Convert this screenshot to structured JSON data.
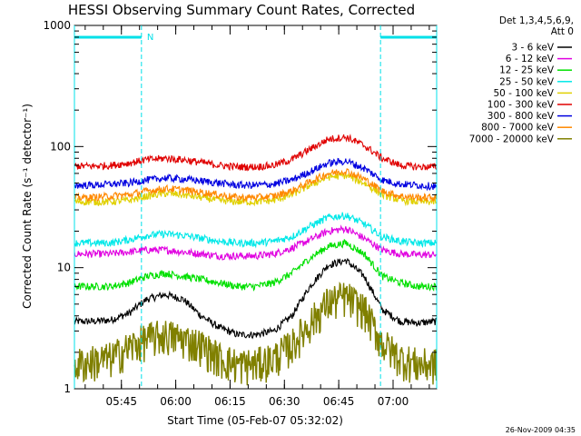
{
  "chart_data": {
    "type": "line",
    "title": "HESSI Observing Summary Count Rates, Corrected",
    "xlabel": "Start Time (05-Feb-07 05:32:02)",
    "ylabel": "Corrected Count Rate (s⁻¹ detector⁻¹)",
    "yscale": "log",
    "ylim": [
      1,
      1000
    ],
    "xlim_minutes_from_start": [
      0,
      100
    ],
    "x_ticks": [
      "05:45",
      "06:00",
      "06:15",
      "06:30",
      "06:45",
      "07:00"
    ],
    "y_ticks": [
      "1",
      "10",
      "100",
      "1000"
    ],
    "legend_header": [
      "Det 1,3,4,5,6,9,",
      "Att 0"
    ],
    "legend_position": "right",
    "timestamp": "26-Nov-2009 04:35",
    "flag_label": "N",
    "night_intervals_minutes": [
      [
        0,
        18.5
      ],
      [
        84.5,
        100
      ]
    ],
    "x_minutes": [
      0,
      5,
      10,
      15,
      20,
      25,
      30,
      35,
      40,
      45,
      50,
      55,
      60,
      65,
      70,
      75,
      80,
      85,
      90,
      95,
      100
    ],
    "series": [
      {
        "name": "3 - 6 keV",
        "color": "#000000",
        "values": [
          3.6,
          3.6,
          3.7,
          4.2,
          5.5,
          6.0,
          5.5,
          4.0,
          3.2,
          2.8,
          2.8,
          3.0,
          4.0,
          7.0,
          10.5,
          11.5,
          8.5,
          4.5,
          3.6,
          3.5,
          3.6
        ]
      },
      {
        "name": "6 - 12 keV",
        "color": "#e000e0",
        "values": [
          13,
          13,
          13,
          13.5,
          14,
          14,
          13.5,
          13,
          12.5,
          12.5,
          12.5,
          13,
          14.5,
          17,
          20,
          21,
          17.5,
          14,
          13,
          12.8,
          12.8
        ]
      },
      {
        "name": "12 - 25 keV",
        "color": "#00e000",
        "values": [
          7,
          7,
          7,
          7.5,
          8.5,
          9,
          8.5,
          8,
          7.5,
          7,
          7,
          7.5,
          9,
          12,
          15,
          16,
          13,
          8.5,
          7.5,
          7,
          7
        ]
      },
      {
        "name": "25 - 50 keV",
        "color": "#00e8e8",
        "values": [
          16,
          16,
          16,
          17,
          18.5,
          19,
          18.5,
          17.5,
          16.5,
          16,
          16,
          16.5,
          18,
          22,
          26,
          27,
          23,
          18,
          16.5,
          16,
          16
        ]
      },
      {
        "name": "50 - 100 keV",
        "color": "#e0d000",
        "values": [
          35,
          35,
          35,
          36,
          39,
          41,
          40,
          38,
          36,
          35,
          35,
          36,
          40,
          48,
          56,
          58,
          50,
          40,
          36,
          35,
          35
        ]
      },
      {
        "name": "100 - 300 keV",
        "color": "#e00000",
        "values": [
          69,
          69,
          70,
          73,
          78,
          80,
          78,
          74,
          70,
          68,
          68,
          70,
          78,
          95,
          115,
          120,
          102,
          80,
          70,
          68,
          68
        ]
      },
      {
        "name": "300 - 800 keV",
        "color": "#0000e0",
        "values": [
          48,
          48,
          49,
          50,
          53,
          55,
          54,
          52,
          50,
          48,
          48,
          49,
          53,
          62,
          73,
          76,
          66,
          53,
          49,
          48,
          47
        ]
      },
      {
        "name": "800 - 7000 keV",
        "color": "#ff8800",
        "values": [
          38,
          38,
          39,
          40,
          43,
          45,
          44,
          42,
          40,
          38,
          38,
          39,
          43,
          51,
          60,
          63,
          54,
          43,
          39,
          38,
          38
        ]
      },
      {
        "name": "7000 - 20000 keV",
        "color": "#808000",
        "values": [
          1.6,
          1.7,
          1.8,
          2.2,
          2.6,
          2.8,
          2.6,
          2.3,
          1.8,
          1.6,
          1.6,
          1.8,
          2.3,
          3.5,
          5.2,
          5.8,
          4.5,
          2.4,
          1.8,
          1.6,
          1.6
        ]
      }
    ]
  }
}
